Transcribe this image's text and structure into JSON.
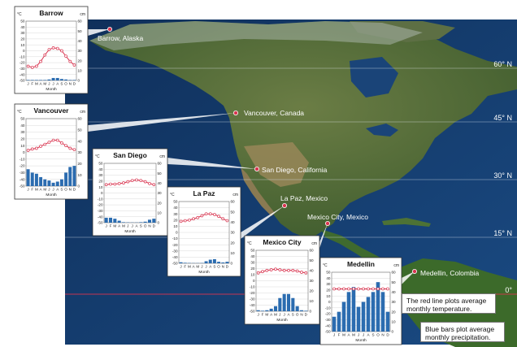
{
  "map": {
    "latitudes": [
      {
        "label": "60° N",
        "lat": 60
      },
      {
        "label": "45° N",
        "lat": 45
      },
      {
        "label": "30° N",
        "lat": 30
      },
      {
        "label": "15° N",
        "lat": 15
      },
      {
        "label": "0°",
        "lat": 0
      }
    ],
    "cities": [
      {
        "id": "barrow",
        "label": "Barrow, Alaska"
      },
      {
        "id": "vancouver",
        "label": "Vancouver, Canada"
      },
      {
        "id": "san-diego",
        "label": "San Diego, California"
      },
      {
        "id": "la-paz",
        "label": "La Paz, Mexico"
      },
      {
        "id": "mexico-city",
        "label": "Mexico City, Mexico"
      },
      {
        "id": "medellin",
        "label": "Medellin, Colombia"
      }
    ],
    "colors": {
      "ocean": "#123a6b",
      "land": "#4f6b34",
      "desert": "#a08a5c",
      "ice": "#d7dee6",
      "marker": "#d9344f"
    }
  },
  "notes": {
    "red_line": "The red line plots average monthly temperature.",
    "blue_bars": "Blue bars plot average monthly precipitation."
  },
  "chart_data": [
    {
      "type": "bar",
      "title": "Barrow",
      "ylabel_left": "°C",
      "ylabel_right": "cm",
      "xlabel": "Month",
      "months": [
        "J",
        "F",
        "M",
        "A",
        "M",
        "J",
        "J",
        "A",
        "S",
        "O",
        "N",
        "D"
      ],
      "ylim_temp": [
        -50,
        50
      ],
      "ylim_precip": [
        0,
        60
      ],
      "temp_ticks": [
        50,
        40,
        30,
        20,
        10,
        0,
        -10,
        -20,
        -30,
        -40,
        -50
      ],
      "precip_ticks": [
        60,
        50,
        40,
        30,
        20,
        10,
        0
      ],
      "series": [
        {
          "name": "Temperature",
          "unit": "°C",
          "color": "#d9344f",
          "values": [
            -26,
            -28,
            -26,
            -18,
            -7,
            2,
            5,
            4,
            0,
            -9,
            -18,
            -24
          ]
        },
        {
          "name": "Precipitation",
          "unit": "cm",
          "color": "#2b6cb0",
          "values": [
            0.5,
            0.5,
            0.5,
            0.5,
            0.5,
            1,
            2.5,
            2.5,
            1.5,
            1,
            0.5,
            0.5
          ]
        }
      ]
    },
    {
      "type": "bar",
      "title": "Vancouver",
      "ylabel_left": "°C",
      "ylabel_right": "cm",
      "xlabel": "Month",
      "months": [
        "J",
        "F",
        "M",
        "A",
        "M",
        "J",
        "J",
        "A",
        "S",
        "O",
        "N",
        "D"
      ],
      "ylim_temp": [
        -50,
        50
      ],
      "ylim_precip": [
        0,
        60
      ],
      "temp_ticks": [
        50,
        40,
        30,
        20,
        10,
        0,
        -10,
        -20,
        -30,
        -40,
        -50
      ],
      "precip_ticks": [
        60,
        50,
        40,
        30,
        20,
        10,
        0
      ],
      "series": [
        {
          "name": "Temperature",
          "unit": "°C",
          "color": "#d9344f",
          "values": [
            3,
            5,
            6,
            9,
            12,
            15,
            18,
            18,
            14,
            10,
            6,
            4
          ]
        },
        {
          "name": "Precipitation",
          "unit": "cm",
          "color": "#2b6cb0",
          "values": [
            15,
            12,
            11,
            8,
            6,
            5,
            3,
            4,
            6,
            12,
            17,
            18
          ]
        }
      ]
    },
    {
      "type": "bar",
      "title": "San Diego",
      "ylabel_left": "°C",
      "ylabel_right": "cm",
      "xlabel": "Month",
      "months": [
        "J",
        "F",
        "M",
        "A",
        "M",
        "J",
        "J",
        "A",
        "S",
        "O",
        "N",
        "D"
      ],
      "ylim_temp": [
        -50,
        50
      ],
      "ylim_precip": [
        0,
        60
      ],
      "temp_ticks": [
        50,
        40,
        30,
        20,
        10,
        0,
        -10,
        -20,
        -30,
        -40,
        -50
      ],
      "precip_ticks": [
        60,
        50,
        40,
        30,
        20,
        10,
        0
      ],
      "series": [
        {
          "name": "Temperature",
          "unit": "°C",
          "color": "#d9344f",
          "values": [
            14,
            15,
            15,
            16,
            17,
            19,
            21,
            22,
            21,
            19,
            16,
            14
          ]
        },
        {
          "name": "Precipitation",
          "unit": "cm",
          "color": "#2b6cb0",
          "values": [
            5,
            5,
            4,
            2,
            0.5,
            0.3,
            0.2,
            0.2,
            0.5,
            1,
            3,
            4
          ]
        }
      ]
    },
    {
      "type": "bar",
      "title": "La Paz",
      "ylabel_left": "°C",
      "ylabel_right": "cm",
      "xlabel": "Month",
      "months": [
        "J",
        "F",
        "M",
        "A",
        "M",
        "J",
        "J",
        "A",
        "S",
        "O",
        "N",
        "D"
      ],
      "ylim_temp": [
        -50,
        50
      ],
      "ylim_precip": [
        0,
        60
      ],
      "temp_ticks": [
        50,
        40,
        30,
        20,
        10,
        0,
        -10,
        -20,
        -30,
        -40,
        -50
      ],
      "precip_ticks": [
        60,
        50,
        40,
        30,
        20,
        10,
        0
      ],
      "series": [
        {
          "name": "Temperature",
          "unit": "°C",
          "color": "#d9344f",
          "values": [
            18,
            19,
            20,
            22,
            24,
            27,
            30,
            30,
            29,
            26,
            22,
            19
          ]
        },
        {
          "name": "Precipitation",
          "unit": "cm",
          "color": "#2b6cb0",
          "values": [
            1,
            0.5,
            0.3,
            0.2,
            0.2,
            0.3,
            2,
            3.5,
            4,
            1.5,
            0.8,
            1.5
          ]
        }
      ]
    },
    {
      "type": "bar",
      "title": "Mexico City",
      "ylabel_left": "°C",
      "ylabel_right": "cm",
      "xlabel": "Month",
      "months": [
        "J",
        "F",
        "M",
        "A",
        "M",
        "J",
        "J",
        "A",
        "S",
        "O",
        "N",
        "D"
      ],
      "ylim_temp": [
        -50,
        50
      ],
      "ylim_precip": [
        0,
        60
      ],
      "temp_ticks": [
        50,
        40,
        30,
        20,
        10,
        0,
        -10,
        -20,
        -30,
        -40,
        -50
      ],
      "precip_ticks": [
        60,
        50,
        40,
        30,
        20,
        10,
        0
      ],
      "series": [
        {
          "name": "Temperature",
          "unit": "°C",
          "color": "#d9344f",
          "values": [
            13,
            15,
            17,
            18,
            19,
            18,
            17,
            17,
            17,
            16,
            14,
            13
          ]
        },
        {
          "name": "Precipitation",
          "unit": "cm",
          "color": "#2b6cb0",
          "values": [
            1,
            0.5,
            1,
            2.5,
            5,
            13,
            17,
            17,
            13,
            5,
            1,
            0.5
          ]
        }
      ]
    },
    {
      "type": "bar",
      "title": "Medellin",
      "ylabel_left": "°C",
      "ylabel_right": "cm",
      "xlabel": "Month",
      "months": [
        "J",
        "F",
        "M",
        "A",
        "M",
        "J",
        "J",
        "A",
        "S",
        "O",
        "N",
        "D"
      ],
      "ylim_temp": [
        -50,
        50
      ],
      "ylim_precip": [
        0,
        60
      ],
      "temp_ticks": [
        50,
        40,
        30,
        20,
        10,
        0,
        -10,
        -20,
        -30,
        -40,
        -50
      ],
      "precip_ticks": [
        60,
        50,
        40,
        30,
        20,
        10,
        0
      ],
      "series": [
        {
          "name": "Temperature",
          "unit": "°C",
          "color": "#d9344f",
          "values": [
            22,
            22,
            22,
            22,
            22,
            22,
            22,
            22,
            22,
            22,
            22,
            22
          ]
        },
        {
          "name": "Precipitation",
          "unit": "cm",
          "color": "#2b6cb0",
          "values": [
            15,
            20,
            30,
            40,
            45,
            25,
            30,
            35,
            40,
            50,
            40,
            20
          ]
        }
      ]
    }
  ]
}
